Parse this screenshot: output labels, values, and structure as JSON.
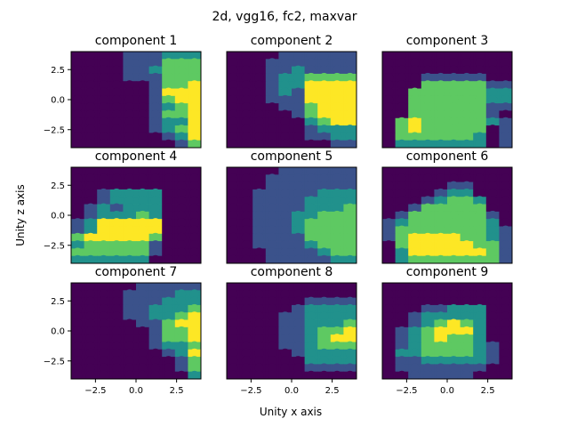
{
  "figure": {
    "suptitle": "2d, vgg16, fc2, maxvar",
    "xlabel": "Unity x axis",
    "ylabel": "Unity z axis"
  },
  "chart_data": {
    "type": "heatmap",
    "colormap": "viridis",
    "value_range": [
      0,
      4
    ],
    "grid_cols": 10,
    "grid_rows": 13,
    "xlim": [
      -4,
      4
    ],
    "ylim": [
      -4,
      4
    ],
    "xticks": [
      -2.5,
      0.0,
      2.5
    ],
    "xtick_labels": [
      "−2.5",
      "0.0",
      "2.5"
    ],
    "yticks": [
      2.5,
      0.0,
      -2.5
    ],
    "ytick_labels": [
      "2.5",
      "0.0",
      "−2.5"
    ],
    "panels": [
      {
        "title": "component 1",
        "rows": [
          "0000111222",
          "0000111333",
          "0000112333",
          "0000111333",
          "0000001334",
          "0000001444",
          "0000001344",
          "0000001234",
          "0000001334",
          "0000001224",
          "0000001234",
          "0000000124",
          "0000000013"
        ]
      },
      {
        "title": "component 2",
        "rows": [
          "0000111111",
          "0001111111",
          "0001121111",
          "0001223333",
          "0001224444",
          "0001214444",
          "0001114444",
          "0000113444",
          "0000013444",
          "0000002344",
          "0000001222",
          "0000001122",
          "0000000011"
        ]
      },
      {
        "title": "component 3",
        "rows": [
          "0000000000",
          "0000000000",
          "0000000000",
          "0001111100",
          "0003333311",
          "0033333322",
          "0033333322",
          "0033333311",
          "0033333310",
          "0343333321",
          "0343333301",
          "0333333201",
          "0222222201"
        ]
      },
      {
        "title": "component 4",
        "rows": [
          "0000000000",
          "0000000000",
          "0000000000",
          "0012222000",
          "0012222000",
          "0121222000",
          "0122232000",
          "1244444000",
          "1244444000",
          "3444443000",
          "2333331000",
          "3333331000",
          "2222220000"
        ]
      },
      {
        "title": "component 5",
        "rows": [
          "0000111111",
          "0001111111",
          "0001111111",
          "0011111222",
          "0011112222",
          "0011112223",
          "0011122333",
          "0011123333",
          "0011123333",
          "0011113333",
          "0011112333",
          "0001111233",
          "0001111122"
        ]
      },
      {
        "title": "component 6",
        "rows": [
          "0000000000",
          "0000000000",
          "0000011000",
          "0000122000",
          "0001233200",
          "0013333300",
          "0133333310",
          "1233333320",
          "1333333321",
          "1344443321",
          "0344444331",
          "0244444431",
          "0233333331"
        ]
      },
      {
        "title": "component 7",
        "rows": [
          "0000011111",
          "0000111122",
          "0000111222",
          "0000112223",
          "0000112234",
          "0000011344",
          "0000001334",
          "0000001334",
          "0000001223",
          "0000000124",
          "0000000013",
          "0000000013",
          "0000000002"
        ]
      },
      {
        "title": "component 8",
        "rows": [
          "0000000000",
          "0000000000",
          "0000001111",
          "0000012222",
          "0000112222",
          "0000112223",
          "0000112334",
          "0000112344",
          "0000112333",
          "0000012222",
          "0000002222",
          "0000001111",
          "0000000000"
        ]
      },
      {
        "title": "component 9",
        "rows": [
          "0000000000",
          "0000000000",
          "0000000000",
          "0001122200",
          "0012222200",
          "0012343200",
          "0123444200",
          "0123433200",
          "0123333210",
          "0223333210",
          "0112222210",
          "0111111100",
          "0011111000"
        ]
      }
    ]
  }
}
